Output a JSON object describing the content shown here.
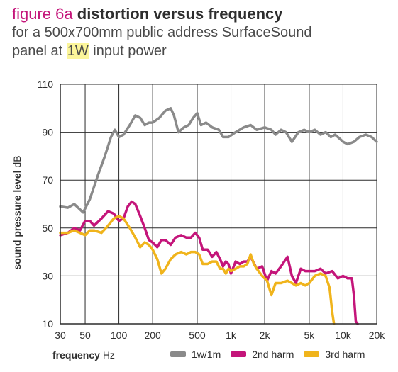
{
  "header": {
    "fig_label": "figure 6a",
    "fig_title": "distortion versus frequency",
    "subtitle_line1": "for a 500x700mm public address SurfaceSound",
    "subtitle_line2_pre": "panel at ",
    "subtitle_line2_highlight": "1W",
    "subtitle_line2_post": " input power"
  },
  "colors": {
    "accent": "#c4157a",
    "highlight": "#fbf59a",
    "series_1w": "#8a8a8a",
    "series_2nd": "#c4157a",
    "series_3rd": "#f0b41c"
  },
  "chart_data": {
    "type": "line",
    "title": "distortion versus frequency",
    "xlabel_bold": "frequency",
    "xlabel_unit": "Hz",
    "ylabel_main": "sound pressure level",
    "ylabel_unit": "dB",
    "xscale": "log",
    "xlim": [
      30,
      20000
    ],
    "ylim": [
      10,
      110
    ],
    "grid": true,
    "legend_position": "bottom",
    "xticks": [
      {
        "value": 30,
        "label": "30"
      },
      {
        "value": 50,
        "label": "50"
      },
      {
        "value": 100,
        "label": "100"
      },
      {
        "value": 200,
        "label": "200"
      },
      {
        "value": 500,
        "label": "500"
      },
      {
        "value": 1000,
        "label": "1k"
      },
      {
        "value": 2000,
        "label": "2k"
      },
      {
        "value": 5000,
        "label": "5k"
      },
      {
        "value": 10000,
        "label": "10k"
      },
      {
        "value": 20000,
        "label": "20k"
      }
    ],
    "yticks": [
      {
        "value": 10,
        "label": "10"
      },
      {
        "value": 30,
        "label": "30"
      },
      {
        "value": 50,
        "label": "50"
      },
      {
        "value": 70,
        "label": "70"
      },
      {
        "value": 90,
        "label": "90"
      },
      {
        "value": 110,
        "label": "110"
      }
    ],
    "series": [
      {
        "name": "1w/1m",
        "color": "#8a8a8a",
        "points": [
          [
            30,
            59
          ],
          [
            35,
            58.5
          ],
          [
            40,
            60
          ],
          [
            48,
            56.5
          ],
          [
            55,
            62
          ],
          [
            65,
            72
          ],
          [
            75,
            80
          ],
          [
            85,
            88
          ],
          [
            92,
            91
          ],
          [
            100,
            88
          ],
          [
            110,
            89
          ],
          [
            125,
            93
          ],
          [
            140,
            97
          ],
          [
            155,
            96
          ],
          [
            170,
            93
          ],
          [
            185,
            94
          ],
          [
            200,
            94
          ],
          [
            230,
            96
          ],
          [
            260,
            99
          ],
          [
            290,
            100
          ],
          [
            310,
            97
          ],
          [
            340,
            90
          ],
          [
            380,
            92
          ],
          [
            420,
            93
          ],
          [
            460,
            96
          ],
          [
            500,
            98
          ],
          [
            540,
            93
          ],
          [
            600,
            94
          ],
          [
            680,
            92
          ],
          [
            780,
            91
          ],
          [
            850,
            88
          ],
          [
            950,
            88
          ],
          [
            1100,
            90
          ],
          [
            1300,
            92
          ],
          [
            1500,
            93
          ],
          [
            1700,
            91
          ],
          [
            2000,
            92
          ],
          [
            2300,
            91
          ],
          [
            2500,
            89
          ],
          [
            2800,
            91
          ],
          [
            3100,
            90
          ],
          [
            3500,
            86
          ],
          [
            4000,
            90
          ],
          [
            4500,
            91
          ],
          [
            5000,
            90
          ],
          [
            5600,
            91
          ],
          [
            6300,
            89
          ],
          [
            7000,
            90
          ],
          [
            7800,
            88
          ],
          [
            8500,
            89
          ],
          [
            9500,
            87
          ],
          [
            10000,
            86
          ],
          [
            11000,
            85
          ],
          [
            12500,
            86
          ],
          [
            14000,
            88
          ],
          [
            16000,
            89
          ],
          [
            18000,
            88
          ],
          [
            20000,
            86
          ]
        ]
      },
      {
        "name": "2nd harm",
        "color": "#c4157a",
        "points": [
          [
            30,
            47
          ],
          [
            35,
            48
          ],
          [
            40,
            50
          ],
          [
            45,
            49
          ],
          [
            50,
            53
          ],
          [
            55,
            53
          ],
          [
            60,
            51
          ],
          [
            70,
            54
          ],
          [
            80,
            57
          ],
          [
            90,
            56
          ],
          [
            100,
            53
          ],
          [
            110,
            54
          ],
          [
            120,
            59
          ],
          [
            130,
            61
          ],
          [
            140,
            60
          ],
          [
            155,
            55
          ],
          [
            170,
            50
          ],
          [
            185,
            45
          ],
          [
            200,
            44
          ],
          [
            220,
            42
          ],
          [
            240,
            45
          ],
          [
            260,
            45
          ],
          [
            290,
            43
          ],
          [
            320,
            46
          ],
          [
            360,
            47
          ],
          [
            400,
            46
          ],
          [
            440,
            46
          ],
          [
            480,
            48
          ],
          [
            520,
            46
          ],
          [
            560,
            41
          ],
          [
            620,
            41
          ],
          [
            680,
            38
          ],
          [
            740,
            40
          ],
          [
            800,
            37
          ],
          [
            850,
            34
          ],
          [
            900,
            36
          ],
          [
            950,
            35
          ],
          [
            1000,
            31
          ],
          [
            1100,
            36
          ],
          [
            1200,
            35
          ],
          [
            1300,
            36
          ],
          [
            1400,
            36
          ],
          [
            1500,
            38
          ],
          [
            1700,
            33
          ],
          [
            1900,
            34
          ],
          [
            2100,
            28
          ],
          [
            2300,
            32
          ],
          [
            2500,
            31
          ],
          [
            2800,
            34
          ],
          [
            3200,
            38
          ],
          [
            3500,
            30
          ],
          [
            3800,
            27
          ],
          [
            4200,
            33
          ],
          [
            4600,
            32
          ],
          [
            5000,
            32
          ],
          [
            5600,
            32
          ],
          [
            6300,
            33
          ],
          [
            7000,
            31
          ],
          [
            8000,
            32
          ],
          [
            9000,
            29
          ],
          [
            10000,
            30
          ],
          [
            11000,
            29
          ],
          [
            12000,
            29
          ],
          [
            12500,
            22
          ],
          [
            13000,
            11
          ],
          [
            13500,
            10
          ]
        ]
      },
      {
        "name": "3rd harm",
        "color": "#f0b41c",
        "points": [
          [
            30,
            48
          ],
          [
            35,
            48
          ],
          [
            40,
            49
          ],
          [
            45,
            48
          ],
          [
            50,
            47
          ],
          [
            55,
            49
          ],
          [
            60,
            49
          ],
          [
            70,
            48
          ],
          [
            80,
            51
          ],
          [
            90,
            54
          ],
          [
            100,
            55
          ],
          [
            110,
            54
          ],
          [
            125,
            50
          ],
          [
            140,
            46
          ],
          [
            155,
            42
          ],
          [
            170,
            44
          ],
          [
            185,
            43
          ],
          [
            200,
            41
          ],
          [
            220,
            37
          ],
          [
            240,
            31
          ],
          [
            260,
            33
          ],
          [
            290,
            37
          ],
          [
            320,
            39
          ],
          [
            360,
            40
          ],
          [
            400,
            39
          ],
          [
            440,
            40
          ],
          [
            480,
            40
          ],
          [
            520,
            39
          ],
          [
            560,
            35
          ],
          [
            620,
            35
          ],
          [
            680,
            36
          ],
          [
            740,
            36
          ],
          [
            800,
            33
          ],
          [
            850,
            33
          ],
          [
            900,
            31
          ],
          [
            950,
            33
          ],
          [
            1000,
            32
          ],
          [
            1100,
            33
          ],
          [
            1200,
            34
          ],
          [
            1300,
            34
          ],
          [
            1400,
            35
          ],
          [
            1500,
            39
          ],
          [
            1600,
            35
          ],
          [
            1700,
            33
          ],
          [
            1900,
            30
          ],
          [
            2100,
            28
          ],
          [
            2300,
            22
          ],
          [
            2500,
            27
          ],
          [
            2800,
            27
          ],
          [
            3200,
            28
          ],
          [
            3500,
            27
          ],
          [
            3800,
            26
          ],
          [
            4200,
            27
          ],
          [
            4600,
            26
          ],
          [
            5000,
            27
          ],
          [
            5600,
            30
          ],
          [
            6300,
            31
          ],
          [
            7000,
            30
          ],
          [
            7600,
            25
          ],
          [
            8000,
            15
          ],
          [
            8300,
            10
          ]
        ]
      }
    ]
  }
}
